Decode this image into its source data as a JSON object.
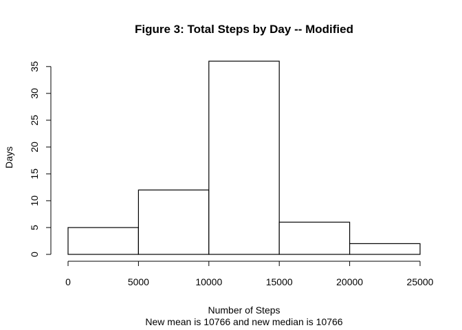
{
  "chart_data": {
    "type": "bar",
    "title": "Figure 3: Total Steps by Day -- Modified",
    "xlabel": "Number of Steps",
    "subtitle": "New mean is 10766 and new median is 10766",
    "ylabel": "Days",
    "bins": [
      {
        "start": 0,
        "end": 5000,
        "count": 5
      },
      {
        "start": 5000,
        "end": 10000,
        "count": 12
      },
      {
        "start": 10000,
        "end": 15000,
        "count": 36
      },
      {
        "start": 15000,
        "end": 20000,
        "count": 6
      },
      {
        "start": 20000,
        "end": 25000,
        "count": 2
      }
    ],
    "xlim": [
      0,
      25000
    ],
    "ylim": [
      0,
      36
    ],
    "x_ticks": [
      0,
      5000,
      10000,
      15000,
      20000,
      25000
    ],
    "y_ticks": [
      0,
      5,
      10,
      15,
      20,
      25,
      30,
      35
    ],
    "grid": false,
    "bar_fill": "#ffffff",
    "bar_stroke": "#000000"
  }
}
